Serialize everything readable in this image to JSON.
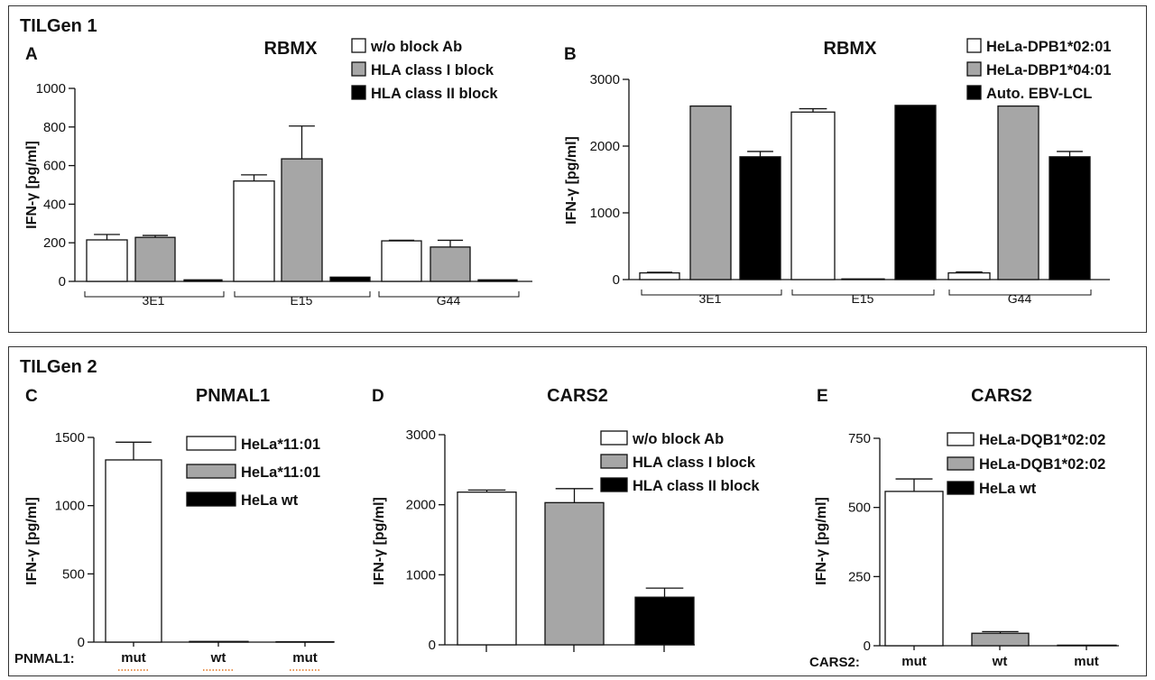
{
  "groups": [
    {
      "title": "TILGen 1"
    },
    {
      "title": "TILGen 2"
    }
  ],
  "colors": {
    "white": "#ffffff",
    "gray": "#a6a6a6",
    "black": "#000000"
  },
  "chart_data": [
    {
      "panel": "A",
      "type": "bar",
      "title": "RBMX",
      "ylabel": "IFN-γ [pg/ml]",
      "ylim": [
        0,
        1000
      ],
      "yticks": [
        0,
        200,
        400,
        600,
        800,
        1000
      ],
      "categories": [
        "3E1",
        "E15",
        "G44"
      ],
      "category_style": "bracket",
      "legend_position": "top-right",
      "series": [
        {
          "name": "w/o block Ab",
          "color": "white",
          "values": [
            215,
            520,
            210
          ],
          "errors": [
            28,
            32,
            3
          ]
        },
        {
          "name": "HLA class I block",
          "color": "gray",
          "values": [
            228,
            635,
            178
          ],
          "errors": [
            10,
            170,
            35
          ]
        },
        {
          "name": "HLA class II block",
          "color": "black",
          "values": [
            8,
            22,
            8
          ],
          "errors": [
            0,
            0,
            0
          ]
        }
      ]
    },
    {
      "panel": "B",
      "type": "bar",
      "title": "RBMX",
      "ylabel": "IFN-γ [pg/ml]",
      "ylim": [
        0,
        3000
      ],
      "yticks": [
        0,
        1000,
        2000,
        3000
      ],
      "categories": [
        "3E1",
        "E15",
        "G44"
      ],
      "category_style": "bracket",
      "legend_position": "top-right",
      "series": [
        {
          "name": "HeLa-DPB1*02:01",
          "color": "white",
          "values": [
            100,
            2510,
            100
          ],
          "errors": [
            10,
            50,
            15
          ]
        },
        {
          "name": "HeLa-DBP1*04:01",
          "color": "gray",
          "values": [
            2600,
            10,
            2600
          ],
          "errors": [
            0,
            0,
            0
          ]
        },
        {
          "name": "Auto. EBV-LCL",
          "color": "black",
          "values": [
            1840,
            2610,
            1840
          ],
          "errors": [
            80,
            0,
            80
          ]
        }
      ]
    },
    {
      "panel": "C",
      "type": "bar",
      "title": "PNMAL1",
      "ylabel": "IFN-γ [pg/ml]",
      "ylim": [
        0,
        1500
      ],
      "yticks": [
        0,
        500,
        1000,
        1500
      ],
      "row_label": "PNMAL1:",
      "categories": [
        "mut",
        "wt",
        "mut"
      ],
      "category_style": "plain",
      "legend_position": "top-right",
      "series": [
        {
          "name": "HeLa*11:01",
          "color": "white",
          "values": [
            1335,
            null,
            null
          ],
          "errors": [
            130,
            null,
            null
          ]
        },
        {
          "name": "HeLa*11:01",
          "color": "gray",
          "values": [
            null,
            5,
            null
          ],
          "errors": [
            null,
            0,
            null
          ]
        },
        {
          "name": "HeLa wt",
          "color": "black",
          "values": [
            null,
            null,
            3
          ],
          "errors": [
            null,
            null,
            0
          ]
        }
      ]
    },
    {
      "panel": "D",
      "type": "bar",
      "title": "CARS2",
      "ylabel": "IFN-γ [pg/ml]",
      "ylim": [
        0,
        3000
      ],
      "yticks": [
        0,
        1000,
        2000,
        3000
      ],
      "categories": [
        "",
        "",
        ""
      ],
      "category_style": "ticks",
      "legend_position": "top-right",
      "series": [
        {
          "name": "w/o block Ab",
          "color": "white",
          "values": [
            2180,
            null,
            null
          ],
          "errors": [
            30,
            null,
            null
          ]
        },
        {
          "name": "HLA class I block",
          "color": "gray",
          "values": [
            null,
            2030,
            null
          ],
          "errors": [
            null,
            200,
            null
          ]
        },
        {
          "name": "HLA class II block",
          "color": "black",
          "values": [
            null,
            null,
            680
          ],
          "errors": [
            null,
            null,
            130
          ]
        }
      ]
    },
    {
      "panel": "E",
      "type": "bar",
      "title": "CARS2",
      "ylabel": "IFN-γ [pg/ml]",
      "ylim": [
        0,
        750
      ],
      "yticks": [
        0,
        250,
        500,
        750
      ],
      "row_label": "CARS2:",
      "categories": [
        "mut",
        "wt",
        "mut"
      ],
      "category_style": "plain",
      "legend_position": "top-right",
      "series": [
        {
          "name": "HeLa-DQB1*02:02",
          "color": "white",
          "values": [
            558,
            null,
            null
          ],
          "errors": [
            45,
            null,
            null
          ]
        },
        {
          "name": "HeLa-DQB1*02:02",
          "color": "gray",
          "values": [
            null,
            45,
            null
          ],
          "errors": [
            null,
            6,
            null
          ]
        },
        {
          "name": "HeLa wt",
          "color": "black",
          "values": [
            null,
            null,
            2
          ],
          "errors": [
            null,
            null,
            0
          ]
        }
      ]
    }
  ]
}
